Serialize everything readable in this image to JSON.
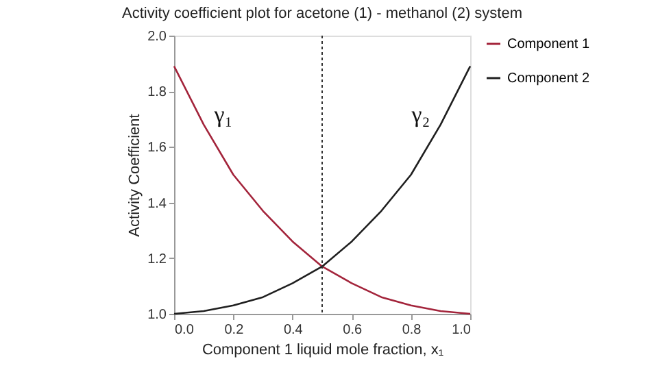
{
  "chart_data": {
    "type": "line",
    "title": "Activity coefficient plot for acetone (1) - methanol (2) system",
    "xlabel": "Component 1 liquid mole fraction, x₁",
    "ylabel": "Activity Coefficient",
    "x": [
      0,
      0.1,
      0.2,
      0.3,
      0.4,
      0.5,
      0.6,
      0.7,
      0.8,
      0.9,
      1.0
    ],
    "series": [
      {
        "name": "Component 1",
        "color": "#a3243b",
        "values": [
          1.89,
          1.68,
          1.5,
          1.37,
          1.26,
          1.17,
          1.11,
          1.06,
          1.03,
          1.01,
          1.0
        ]
      },
      {
        "name": "Component 2",
        "color": "#1f1f1f",
        "values": [
          1.0,
          1.01,
          1.03,
          1.06,
          1.11,
          1.17,
          1.26,
          1.37,
          1.5,
          1.68,
          1.89
        ]
      }
    ],
    "xlim": [
      0,
      1
    ],
    "xticks": [
      {
        "value": 0,
        "label": "0.0"
      },
      0.2,
      0.4,
      0.6,
      0.8,
      {
        "value": 1,
        "label": "1.0"
      }
    ],
    "ylim": [
      1,
      2
    ],
    "yticks": [
      {
        "value": 1,
        "label": "1.0"
      },
      1.2,
      1.4,
      1.6,
      1.8,
      {
        "value": 2,
        "label": "2.0"
      }
    ],
    "ref_lines": [
      {
        "axis": "x",
        "value": 0.5,
        "line_style": "dotted",
        "color": "#333333"
      }
    ],
    "annotations": [
      "γ₁",
      "γ₂"
    ],
    "grid": false,
    "legend": "right",
    "marker": "none",
    "line_style": "solid"
  }
}
